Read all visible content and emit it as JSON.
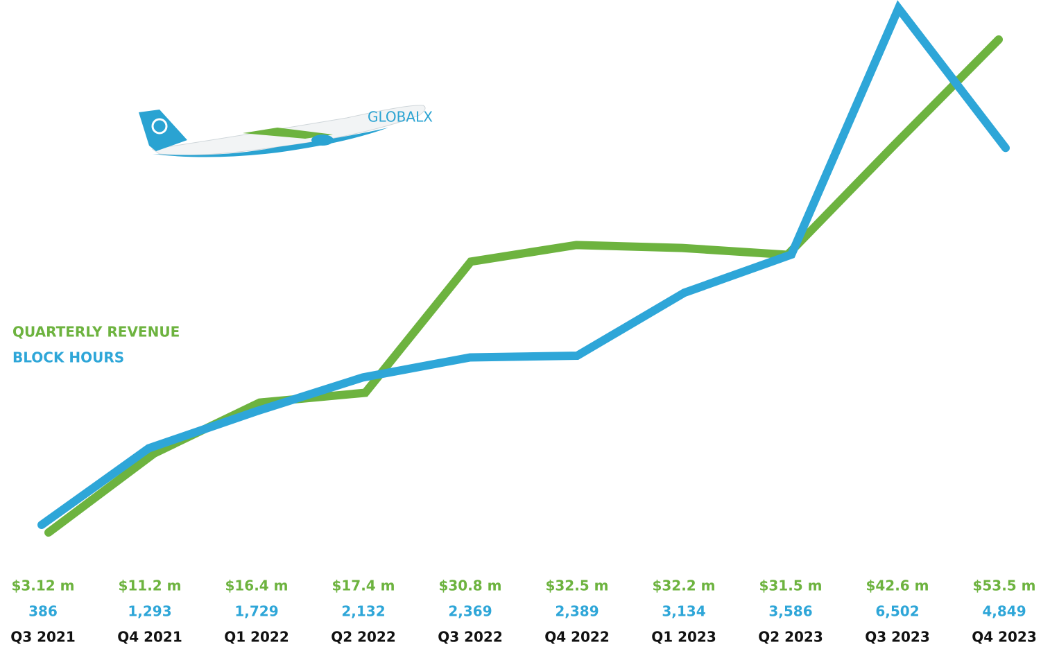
{
  "chart_data": {
    "type": "line",
    "categories": [
      "Q3 2021",
      "Q4 2021",
      "Q1 2022",
      "Q2 2022",
      "Q3 2022",
      "Q4 2022",
      "Q1 2023",
      "Q2 2023",
      "Q3 2023",
      "Q4 2023"
    ],
    "legend": "left",
    "series": [
      {
        "name": "QUARTERLY REVENUE",
        "color": "#6db33f",
        "values": [
          3.12,
          11.2,
          16.4,
          17.4,
          30.8,
          32.5,
          32.2,
          31.5,
          42.6,
          53.5
        ],
        "value_labels": [
          "$3.12 m",
          "$11.2 m",
          "$16.4 m",
          "$17.4 m",
          "$30.8 m",
          "$32.5 m",
          "$32.2 m",
          "$31.5 m",
          "$42.6 m",
          "$53.5 m"
        ]
      },
      {
        "name": "BLOCK HOURS",
        "color": "#2ea6d8",
        "values": [
          386,
          1293,
          1729,
          2132,
          2369,
          2389,
          3134,
          3586,
          6502,
          4849
        ],
        "value_labels": [
          "386",
          "1,293",
          "1,729",
          "2,132",
          "2,369",
          "2,389",
          "3,134",
          "3,586",
          "6,502",
          "4,849"
        ]
      }
    ]
  }
}
